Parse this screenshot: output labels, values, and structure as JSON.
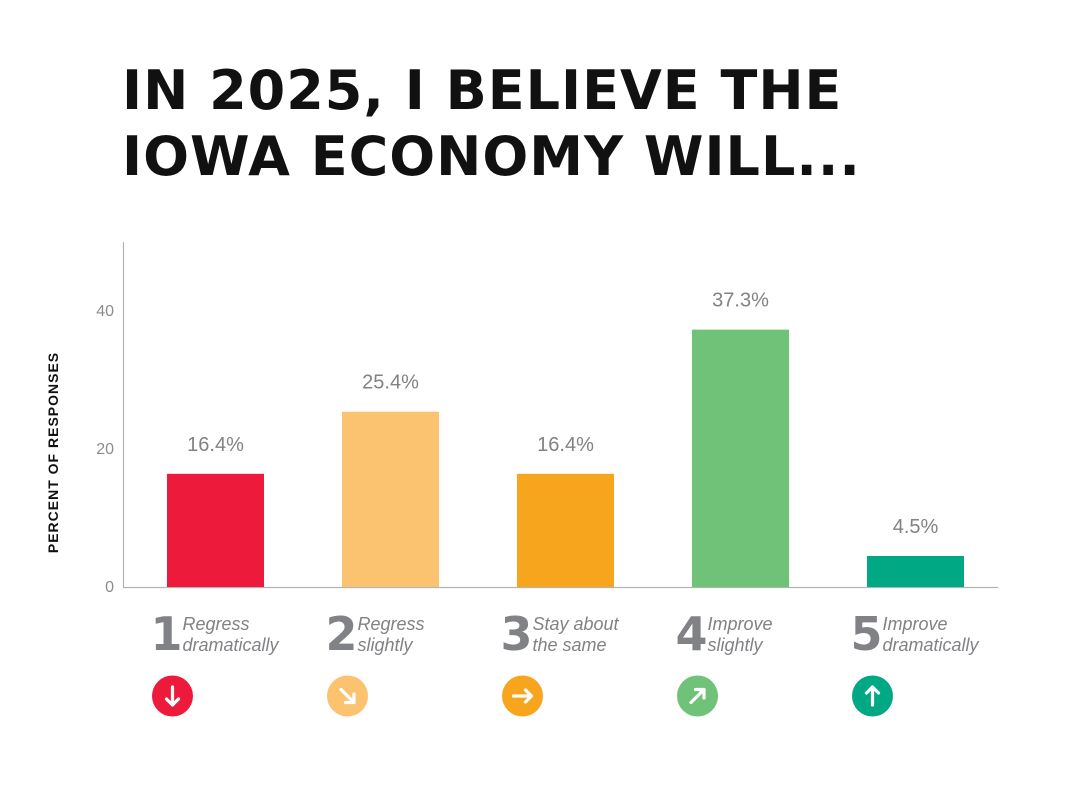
{
  "chart_data": {
    "type": "bar",
    "title_lines": [
      "IN 2025, I BELIEVE THE",
      "IOWA ECONOMY WILL..."
    ],
    "ylabel": "PERCENT OF RESPONSES",
    "ylim": [
      0,
      50
    ],
    "yticks": [
      0,
      20,
      40
    ],
    "grid": false,
    "categories": [
      {
        "number": "1",
        "label_lines": [
          "Regress",
          "dramatically"
        ],
        "value": 16.4,
        "value_label": "16.4%",
        "color": "#ED1A3B",
        "icon": "arrow-down-icon"
      },
      {
        "number": "2",
        "label_lines": [
          "Regress",
          "slightly"
        ],
        "value": 25.4,
        "value_label": "25.4%",
        "color": "#FBC270",
        "icon": "arrow-down-right-icon"
      },
      {
        "number": "3",
        "label_lines": [
          "Stay about",
          "the same"
        ],
        "value": 16.4,
        "value_label": "16.4%",
        "color": "#F8A51E",
        "icon": "arrow-right-icon"
      },
      {
        "number": "4",
        "label_lines": [
          "Improve",
          "slightly"
        ],
        "value": 37.3,
        "value_label": "37.3%",
        "color": "#6FC277",
        "icon": "arrow-up-right-icon"
      },
      {
        "number": "5",
        "label_lines": [
          "Improve",
          "dramatically"
        ],
        "value": 4.5,
        "value_label": "4.5%",
        "color": "#00A983",
        "icon": "arrow-up-icon"
      }
    ]
  }
}
